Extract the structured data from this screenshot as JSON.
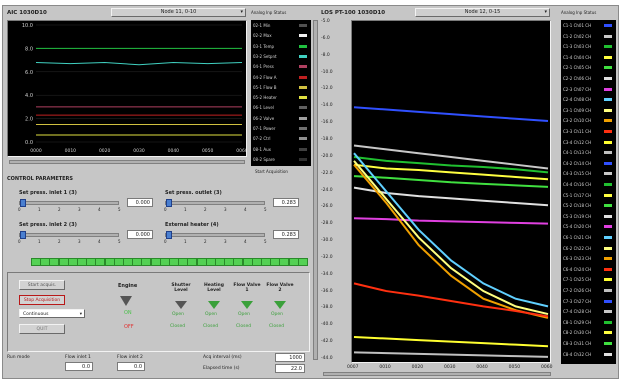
{
  "left_panel": {
    "title": "AIC 1030D10",
    "node_select": "Node 11, 0-10",
    "legend_header": "Analog Inp Status",
    "legend_items": [
      {
        "label": "02-1 Min"
      },
      {
        "label": "02-2 Max"
      },
      {
        "label": "03-1 Temp"
      },
      {
        "label": "03-2 Setpnt"
      },
      {
        "label": "04-1 Press"
      },
      {
        "label": "04-2 Flow A"
      },
      {
        "label": "05-1 Flow B"
      },
      {
        "label": "05-2 Heater"
      },
      {
        "label": "06-1 Level"
      },
      {
        "label": "06-2 Valve"
      },
      {
        "label": "07-1 Power"
      },
      {
        "label": "07-2 Ctrl"
      },
      {
        "label": "08-1 Aux"
      },
      {
        "label": "08-2 Spare"
      }
    ],
    "y_ticks": [
      "10.0",
      "8.0",
      "6.0",
      "4.0",
      "2.0",
      "0.0"
    ],
    "x_ticks": [
      "0000",
      "0010",
      "0020",
      "0030",
      "0040",
      "0050",
      "0060"
    ],
    "aux_note": "Start Acquisition"
  },
  "chart_data": [
    {
      "type": "line",
      "ylim": [
        0,
        10
      ],
      "x": [
        0,
        10,
        20,
        30,
        40,
        50,
        60
      ],
      "series": [
        {
          "values": [
            8.0,
            8.0,
            8.0,
            8.0,
            8.0,
            8.0,
            8.0
          ],
          "color": "#20c040"
        },
        {
          "values": [
            6.8,
            6.7,
            6.8,
            6.6,
            6.8,
            6.7,
            6.8
          ],
          "color": "#40d0c0"
        },
        {
          "values": [
            3.0,
            3.0,
            3.0,
            3.0,
            3.0,
            3.0,
            3.0
          ],
          "color": "#b04060"
        },
        {
          "values": [
            2.3,
            2.3,
            2.3,
            2.3,
            2.3,
            2.3,
            2.3
          ],
          "color": "#c02020"
        },
        {
          "values": [
            1.5,
            1.5,
            1.5,
            1.5,
            1.5,
            1.5,
            1.5
          ],
          "color": "#d0c040"
        },
        {
          "values": [
            0.6,
            0.6,
            0.6,
            0.6,
            0.6,
            0.6,
            0.6
          ],
          "color": "#e0e040"
        }
      ]
    },
    {
      "type": "line",
      "ylim": [
        -44,
        0
      ],
      "x": [
        0,
        10,
        20,
        30,
        40,
        50,
        60
      ],
      "series": [
        {
          "values": [
            -11,
            -11.3,
            -11.6,
            -11.9,
            -12.2,
            -12.5,
            -12.8
          ],
          "color": "#3050ff"
        },
        {
          "values": [
            -16,
            -16.5,
            -17,
            -17.5,
            -18,
            -18.5,
            -19
          ],
          "color": "#c8c8c8"
        },
        {
          "values": [
            -17.5,
            -18,
            -18.3,
            -18.6,
            -18.8,
            -19.1,
            -19.5
          ],
          "color": "#20c030"
        },
        {
          "values": [
            -18.5,
            -19,
            -19.2,
            -19.5,
            -19.8,
            -20.1,
            -20.4
          ],
          "color": "#ffff40"
        },
        {
          "values": [
            -20,
            -20.2,
            -20.5,
            -20.8,
            -21,
            -21.2,
            -21.4
          ],
          "color": "#40e040"
        },
        {
          "values": [
            -21.5,
            -22.2,
            -22.6,
            -22.9,
            -23.2,
            -23.5,
            -23.8
          ],
          "color": "#e0e0e0"
        },
        {
          "values": [
            -25.5,
            -25.6,
            -25.8,
            -25.9,
            -26,
            -26.1,
            -26.2
          ],
          "color": "#e040e0"
        },
        {
          "values": [
            -17,
            -22,
            -27,
            -31,
            -34,
            -36,
            -37
          ],
          "color": "#60d0ff"
        },
        {
          "values": [
            -18,
            -23,
            -28,
            -32,
            -35,
            -37,
            -38
          ],
          "color": "#ffff80"
        },
        {
          "values": [
            -18.5,
            -23.5,
            -29,
            -33,
            -36,
            -37.5,
            -38.5
          ],
          "color": "#f0a000"
        },
        {
          "values": [
            -34,
            -35,
            -35.6,
            -36.3,
            -37,
            -37.6,
            -38.3
          ],
          "color": "#ff3010"
        },
        {
          "values": [
            -41,
            -41.2,
            -41.4,
            -41.6,
            -41.8,
            -42,
            -42.2
          ],
          "color": "#ffff30"
        },
        {
          "values": [
            -43,
            -43.1,
            -43.2,
            -43.3,
            -43.4,
            -43.5,
            -43.6
          ],
          "color": "#c0c0c0"
        }
      ]
    }
  ],
  "right_panel": {
    "title": "LOS PT-100 1030D10",
    "node_select": "Node 12, 0-15",
    "legend_header": "Analog Inp Status",
    "y_ticks": [
      "-5.0",
      "-6.0",
      "-8.0",
      "-10.0",
      "-12.0",
      "-14.0",
      "-16.0",
      "-18.0",
      "-20.0",
      "-22.0",
      "-24.0",
      "-26.0",
      "-28.0",
      "-30.0",
      "-32.0",
      "-34.0",
      "-36.0",
      "-38.0",
      "-40.0",
      "-42.0",
      "-44.0"
    ],
    "x_ticks": [
      "0007",
      "0010",
      "0020",
      "0030",
      "0040",
      "0050",
      "0060"
    ],
    "legend_items": [
      {
        "label": "C1-1 Ch01 CH"
      },
      {
        "label": "C1-2 Ch02 CH"
      },
      {
        "label": "C1-3 Ch03 CH"
      },
      {
        "label": "C1-4 Ch04 CH"
      },
      {
        "label": "C2-1 Ch05 CH"
      },
      {
        "label": "C2-2 Ch06 CH"
      },
      {
        "label": "C2-3 Ch07 CH"
      },
      {
        "label": "C2-4 Ch08 CH"
      },
      {
        "label": "C3-1 Ch09 CH"
      },
      {
        "label": "C3-2 Ch10 CH"
      },
      {
        "label": "C3-3 Ch11 CH"
      },
      {
        "label": "C3-4 Ch12 CH"
      },
      {
        "label": "C4-1 Ch13 CH"
      },
      {
        "label": "C4-2 Ch14 CH"
      },
      {
        "label": "C4-3 Ch15 CH"
      },
      {
        "label": "C4-4 Ch16 CH"
      },
      {
        "label": "C5-1 Ch17 CH"
      },
      {
        "label": "C5-2 Ch18 CH"
      },
      {
        "label": "C5-3 Ch19 CH"
      },
      {
        "label": "C5-4 Ch20 CH"
      },
      {
        "label": "C6-1 Ch21 CH"
      },
      {
        "label": "C6-2 Ch22 CH"
      },
      {
        "label": "C6-3 Ch23 CH"
      },
      {
        "label": "C6-4 Ch24 CH"
      },
      {
        "label": "C7-1 Ch25 CH"
      },
      {
        "label": "C7-2 Ch26 CH"
      },
      {
        "label": "C7-3 Ch27 CH"
      },
      {
        "label": "C7-4 Ch28 CH"
      },
      {
        "label": "C8-1 Ch29 CH"
      },
      {
        "label": "C8-2 Ch30 CH"
      },
      {
        "label": "C8-3 Ch31 CH"
      },
      {
        "label": "C8-4 Ch32 CH"
      }
    ]
  },
  "control": {
    "section_title": "CONTROL PARAMETERS",
    "params": [
      {
        "label": "Set press. inlet 1 (3)",
        "value": "0.000",
        "level": 0.0
      },
      {
        "label": "Set press. outlet (3)",
        "value": "0.283",
        "level": 0.0
      },
      {
        "label": "Set press. inlet 2 (3)",
        "value": "0.000",
        "level": 0.0
      },
      {
        "label": "External heater (4)",
        "value": "0.283",
        "level": 0.0
      }
    ],
    "scale_ticks": [
      "0",
      "1",
      "2",
      "3",
      "4",
      "5"
    ],
    "led_count": 30
  },
  "status": {
    "buttons": {
      "start": "Start acquis.",
      "stop": "Stop Acquisition",
      "quit": "QUIT"
    },
    "mode_select": "Continuous",
    "engine": {
      "title": "Engine",
      "state_on": "ON",
      "state_off": "OFF"
    },
    "valves": [
      {
        "title": "Shutter Level",
        "on": "Open",
        "off": "Closed"
      },
      {
        "title": "Heating Level",
        "on": "Open",
        "off": "Closed"
      },
      {
        "title": "Flow Valve 1",
        "on": "Open",
        "off": "Closed"
      },
      {
        "title": "Flow Valve 2",
        "on": "Open",
        "off": "Closed"
      }
    ],
    "bottom": {
      "mode_label": "Run mode",
      "flow_label_1": "Flow inlet 1",
      "flow_label_2": "Flow inlet 2",
      "flow_val_1": "0.0",
      "flow_val_2": "0.0",
      "interval_label": "Acq interval (ms)",
      "interval_value": "1000",
      "elapsed_label": "Elapsed time (s)",
      "elapsed_value": "22.0"
    }
  },
  "colors": {
    "window_bg": "#c6c6c6",
    "plot_bg": "#000000",
    "led_on": "#54d154"
  }
}
